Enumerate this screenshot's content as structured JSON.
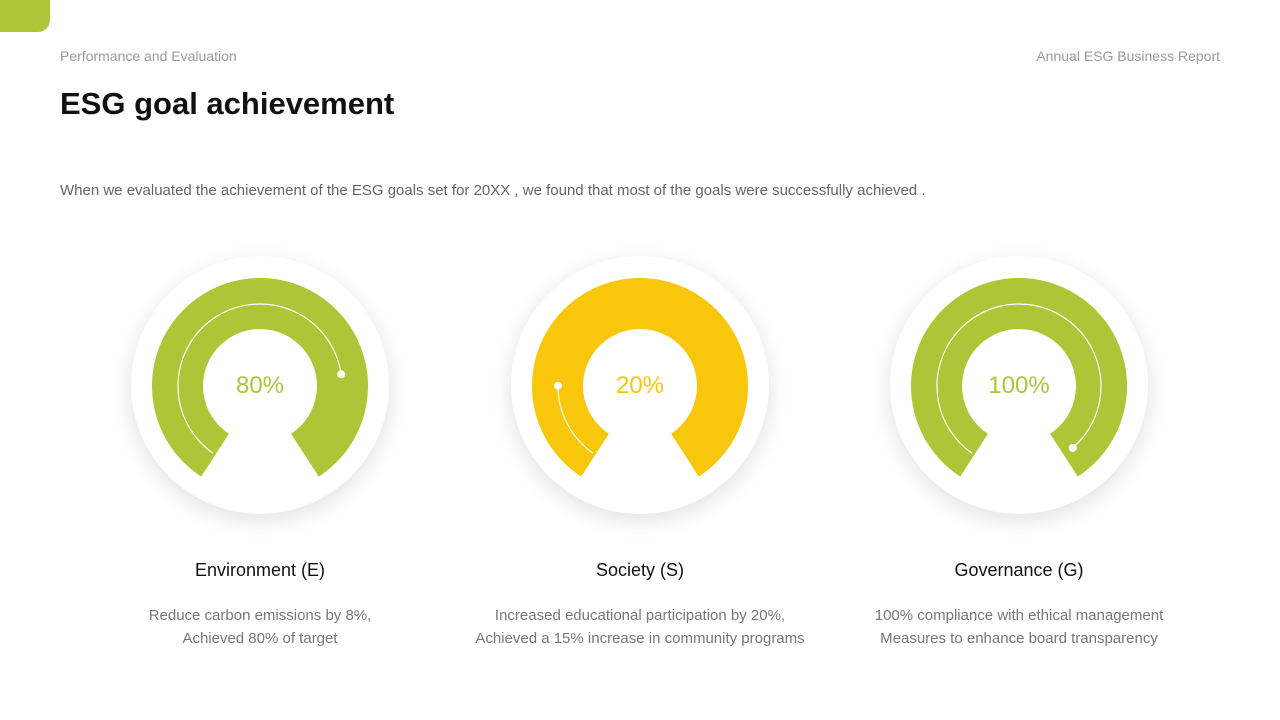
{
  "header": {
    "left": "Performance and Evaluation",
    "right": "Annual ESG Business Report"
  },
  "title": "ESG goal achievement",
  "description": "When we evaluated the achievement of the ESG goals set for 20XX , we found that most of the goals were successfully achieved .",
  "colors": {
    "green": "#adc536",
    "yellow": "#f8c60a"
  },
  "gauges": [
    {
      "value_label": "80%",
      "value": 0.8,
      "color": "#adc536",
      "title": "Environment (E)",
      "lines": [
        "Reduce carbon emissions by 8%,",
        "Achieved 80% of target"
      ]
    },
    {
      "value_label": "20%",
      "value": 0.2,
      "color": "#f8c60a",
      "title": "Society (S)",
      "lines": [
        "Increased educational participation by 20%,",
        "Achieved a 15% increase in community programs"
      ]
    },
    {
      "value_label": "100%",
      "value": 1.0,
      "color": "#adc536",
      "title": "Governance (G)",
      "lines": [
        "100% compliance with ethical management",
        "Measures to enhance board transparency"
      ]
    }
  ]
}
